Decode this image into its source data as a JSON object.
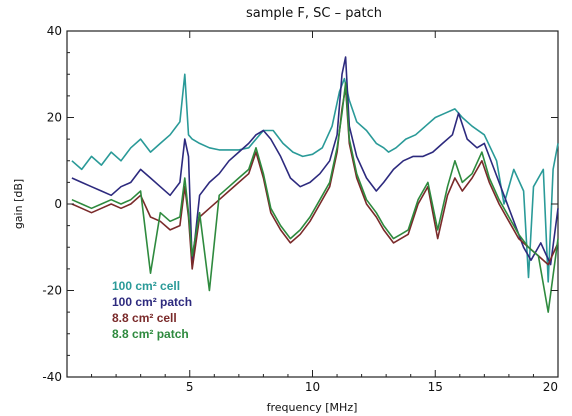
{
  "chart_data": {
    "type": "line",
    "title": "sample F, SC – patch",
    "xlabel": "frequency [MHz]",
    "ylabel": "gain [dB]",
    "xlim": [
      0,
      20
    ],
    "ylim": [
      -40,
      40
    ],
    "x_ticks": [
      5,
      10,
      15,
      20
    ],
    "y_ticks": [
      -40,
      -20,
      0,
      20,
      40
    ],
    "grid": false,
    "legend_placement": "bottom-left",
    "series": [
      {
        "name": "100 cm² cell",
        "color": "#2a9a98",
        "x": [
          0.2,
          0.6,
          1.0,
          1.4,
          1.8,
          2.2,
          2.6,
          3.0,
          3.4,
          3.8,
          4.2,
          4.6,
          4.8,
          4.95,
          5.1,
          5.4,
          5.8,
          6.2,
          6.6,
          7.0,
          7.4,
          7.7,
          8.0,
          8.4,
          8.8,
          9.2,
          9.6,
          10.0,
          10.4,
          10.8,
          11.1,
          11.3,
          11.5,
          11.8,
          12.2,
          12.6,
          12.9,
          13.1,
          13.4,
          13.8,
          14.2,
          14.6,
          15.0,
          15.4,
          15.8,
          16.1,
          16.5,
          17.0,
          17.5,
          17.8,
          18.2,
          18.6,
          18.8,
          19.0,
          19.4,
          19.6,
          19.8,
          20.0
        ],
        "y": [
          10,
          8,
          11,
          9,
          12,
          10,
          13,
          15,
          12,
          14,
          16,
          19,
          30,
          16,
          15,
          14,
          13,
          12.5,
          12.5,
          12.5,
          13,
          15,
          17,
          17,
          14,
          12,
          11,
          11.5,
          13,
          18,
          26,
          29,
          24,
          19,
          17,
          14,
          13,
          12,
          13,
          15,
          16,
          18,
          20,
          21,
          22,
          20,
          18,
          16,
          10,
          0,
          8,
          3,
          -17,
          4,
          8,
          -18,
          8,
          14
        ]
      },
      {
        "name": "100 cm² patch",
        "color": "#2d2a7e",
        "x": [
          0.2,
          0.6,
          1.0,
          1.4,
          1.8,
          2.2,
          2.6,
          3.0,
          3.4,
          3.8,
          4.2,
          4.6,
          4.8,
          4.95,
          5.1,
          5.4,
          5.8,
          6.2,
          6.6,
          7.0,
          7.4,
          7.7,
          8.0,
          8.3,
          8.7,
          9.1,
          9.5,
          9.9,
          10.3,
          10.7,
          11.0,
          11.2,
          11.35,
          11.5,
          11.8,
          12.2,
          12.6,
          12.9,
          13.3,
          13.7,
          14.1,
          14.5,
          14.9,
          15.3,
          15.7,
          15.95,
          16.3,
          16.7,
          17.0,
          17.4,
          17.8,
          18.2,
          18.6,
          18.9,
          19.3,
          19.7,
          20.0
        ],
        "y": [
          6,
          5,
          4,
          3,
          2,
          4,
          5,
          8,
          6,
          4,
          2,
          5,
          15,
          11,
          -14,
          2,
          5,
          7,
          10,
          12,
          14,
          16,
          17,
          15,
          11,
          6,
          4,
          5,
          7,
          10,
          16,
          30,
          34,
          18,
          11,
          6,
          3,
          5,
          8,
          10,
          11,
          11,
          12,
          14,
          16,
          21,
          15,
          13,
          14,
          8,
          2,
          -4,
          -10,
          -13,
          -9,
          -14,
          -1
        ]
      },
      {
        "name": "8.8 cm² cell",
        "color": "#7a2a2a",
        "x": [
          0.2,
          0.6,
          1.0,
          1.4,
          1.8,
          2.2,
          2.6,
          3.0,
          3.4,
          3.8,
          4.2,
          4.6,
          4.8,
          4.95,
          5.1,
          5.4,
          5.8,
          6.2,
          6.6,
          7.0,
          7.4,
          7.7,
          8.0,
          8.3,
          8.7,
          9.1,
          9.5,
          9.9,
          10.3,
          10.7,
          11.0,
          11.2,
          11.35,
          11.5,
          11.8,
          12.2,
          12.6,
          12.9,
          13.3,
          13.6,
          13.9,
          14.3,
          14.7,
          15.1,
          15.5,
          15.8,
          16.1,
          16.5,
          16.9,
          17.2,
          17.6,
          18.0,
          18.4,
          18.8,
          19.2,
          19.6,
          20.0
        ],
        "y": [
          0,
          -1,
          -2,
          -1,
          0,
          -1,
          0,
          2,
          -3,
          -4,
          -6,
          -5,
          4,
          -3,
          -15,
          -3,
          -1,
          1,
          3,
          5,
          7,
          12,
          6,
          -2,
          -6,
          -9,
          -7,
          -4,
          0,
          4,
          12,
          22,
          27,
          14,
          6,
          0,
          -3,
          -6,
          -9,
          -8,
          -7,
          0,
          4,
          -8,
          2,
          6,
          3,
          6,
          10,
          5,
          0,
          -4,
          -8,
          -10,
          -12,
          -14,
          -9
        ]
      },
      {
        "name": "8.8 cm² patch",
        "color": "#2e8a3e",
        "x": [
          0.2,
          0.6,
          1.0,
          1.4,
          1.8,
          2.2,
          2.6,
          3.0,
          3.4,
          3.8,
          4.2,
          4.6,
          4.8,
          4.95,
          5.1,
          5.4,
          5.8,
          6.2,
          6.6,
          7.0,
          7.4,
          7.7,
          8.0,
          8.3,
          8.7,
          9.1,
          9.5,
          9.9,
          10.3,
          10.7,
          11.0,
          11.2,
          11.35,
          11.5,
          11.8,
          12.2,
          12.6,
          12.9,
          13.3,
          13.6,
          13.9,
          14.3,
          14.7,
          15.1,
          15.5,
          15.8,
          16.1,
          16.5,
          16.9,
          17.2,
          17.6,
          18.0,
          18.4,
          18.8,
          19.2,
          19.6,
          20.0
        ],
        "y": [
          1,
          0,
          -1,
          0,
          1,
          0,
          1,
          3,
          -16,
          -2,
          -4,
          -3,
          6,
          -2,
          -12,
          -2,
          -20,
          2,
          4,
          6,
          8,
          13,
          7,
          -1,
          -5,
          -8,
          -6,
          -3,
          1,
          5,
          13,
          21,
          28,
          15,
          7,
          1,
          -2,
          -5,
          -8,
          -7,
          -6,
          1,
          5,
          -6,
          4,
          10,
          5,
          7,
          12,
          6,
          1,
          -3,
          -7,
          -10,
          -12,
          -25,
          -8
        ]
      }
    ]
  }
}
